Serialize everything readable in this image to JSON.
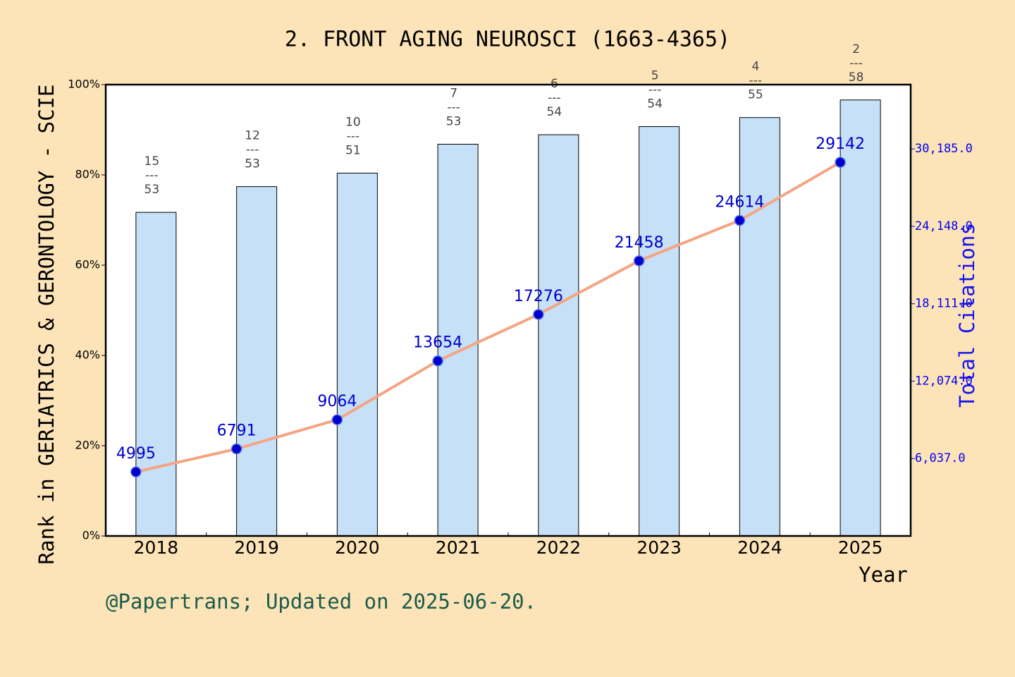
{
  "chart_data": {
    "type": "bar",
    "title": "2. FRONT AGING NEUROSCI (1663-4365)",
    "ylabel": "Rank in GERIATRICS & GERONTOLOGY - SCIE",
    "y2label": "Total Citations",
    "xlabel": "Year",
    "footer": "@Papertrans; Updated on 2025-06-20.",
    "categories": [
      "2018",
      "2019",
      "2020",
      "2021",
      "2022",
      "2023",
      "2024",
      "2025"
    ],
    "series": [
      {
        "type": "bar",
        "color": "#c6e0f7",
        "values": [
          71.7,
          77.4,
          80.4,
          86.8,
          88.9,
          90.7,
          92.7,
          96.6
        ]
      },
      {
        "type": "line",
        "color": "#f4a582",
        "marker_color": "#0000cc",
        "axis": "y2",
        "values": [
          4995,
          6791,
          9064,
          13654,
          17276,
          21458,
          24614,
          29142
        ]
      }
    ],
    "rank_labels": [
      [
        "15",
        "---",
        "53"
      ],
      [
        "12",
        "---",
        "53"
      ],
      [
        "10",
        "---",
        "51"
      ],
      [
        "7",
        "---",
        "53"
      ],
      [
        "6",
        "---",
        "54"
      ],
      [
        "5",
        "---",
        "54"
      ],
      [
        "4",
        "---",
        "55"
      ],
      [
        "2",
        "---",
        "58"
      ]
    ],
    "ylim": [
      0,
      100
    ],
    "yticks": [
      {
        "value": 0,
        "label": "0%"
      },
      {
        "value": 20,
        "label": "20%"
      },
      {
        "value": 40,
        "label": "40%"
      },
      {
        "value": 60,
        "label": "60%"
      },
      {
        "value": 80,
        "label": "80%"
      },
      {
        "value": 100,
        "label": "100%"
      }
    ],
    "y2lim": [
      0,
      35200
    ],
    "y2ticks": [
      {
        "value": 6037,
        "label": "6,037.0"
      },
      {
        "value": 12074,
        "label": "12,074.0"
      },
      {
        "value": 18111,
        "label": "18,111.0"
      },
      {
        "value": 24148,
        "label": "24,148.0"
      },
      {
        "value": 30185,
        "label": "30,185.0"
      }
    ]
  }
}
